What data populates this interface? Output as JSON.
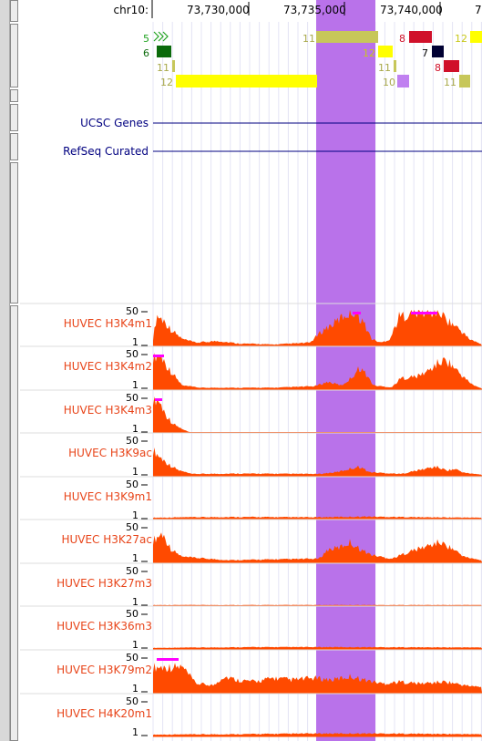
{
  "ruler": {
    "chrom": "chr10:",
    "positions": [
      "73,730,000",
      "73,735,000",
      "73,740,000",
      "7"
    ]
  },
  "chromhmm": [
    {
      "label": "5",
      "color": "#1fa21f"
    },
    {
      "label": "11",
      "color": "#a8a84a"
    },
    {
      "label": "8",
      "color": "#d0102a"
    },
    {
      "label": "12",
      "color": "#c7c71a"
    },
    {
      "label": "6",
      "color": "#0b6a0b"
    },
    {
      "label": "12",
      "color": "#c7c71a"
    },
    {
      "label": "7",
      "color": "#000"
    },
    {
      "label": "11",
      "color": "#a8a84a"
    },
    {
      "label": "11",
      "color": "#a8a84a"
    },
    {
      "label": "8",
      "color": "#d0102a"
    },
    {
      "label": "12",
      "color": "#a8a84a"
    },
    {
      "label": "10",
      "color": "#a8a84a"
    },
    {
      "label": "11",
      "color": "#a8a84a"
    }
  ],
  "gene_tracks": [
    {
      "name": "UCSC Genes"
    },
    {
      "name": "RefSeq Curated"
    }
  ],
  "signal_tracks": [
    {
      "name": "HUVEC H3K4m1",
      "max": "50",
      "min": "1"
    },
    {
      "name": "HUVEC H3K4m2",
      "max": "50",
      "min": "1"
    },
    {
      "name": "HUVEC H3K4m3",
      "max": "50",
      "min": "1"
    },
    {
      "name": "HUVEC H3K9ac",
      "max": "50",
      "min": "1"
    },
    {
      "name": "HUVEC H3K9m1",
      "max": "50",
      "min": "1"
    },
    {
      "name": "HUVEC H3K27ac",
      "max": "50",
      "min": "1"
    },
    {
      "name": "HUVEC H3K27m3",
      "max": "50",
      "min": "1"
    },
    {
      "name": "HUVEC H3K36m3",
      "max": "50",
      "min": "1"
    },
    {
      "name": "HUVEC H3K79m2",
      "max": "50",
      "min": "1"
    },
    {
      "name": "HUVEC H4K20m1",
      "max": "50",
      "min": "1"
    }
  ],
  "colors": {
    "signal": "#ff4a00",
    "highlight": "#b972ea",
    "overflow": "#ff00ff",
    "gene_line": "#000080",
    "label": "#e8451a"
  }
}
